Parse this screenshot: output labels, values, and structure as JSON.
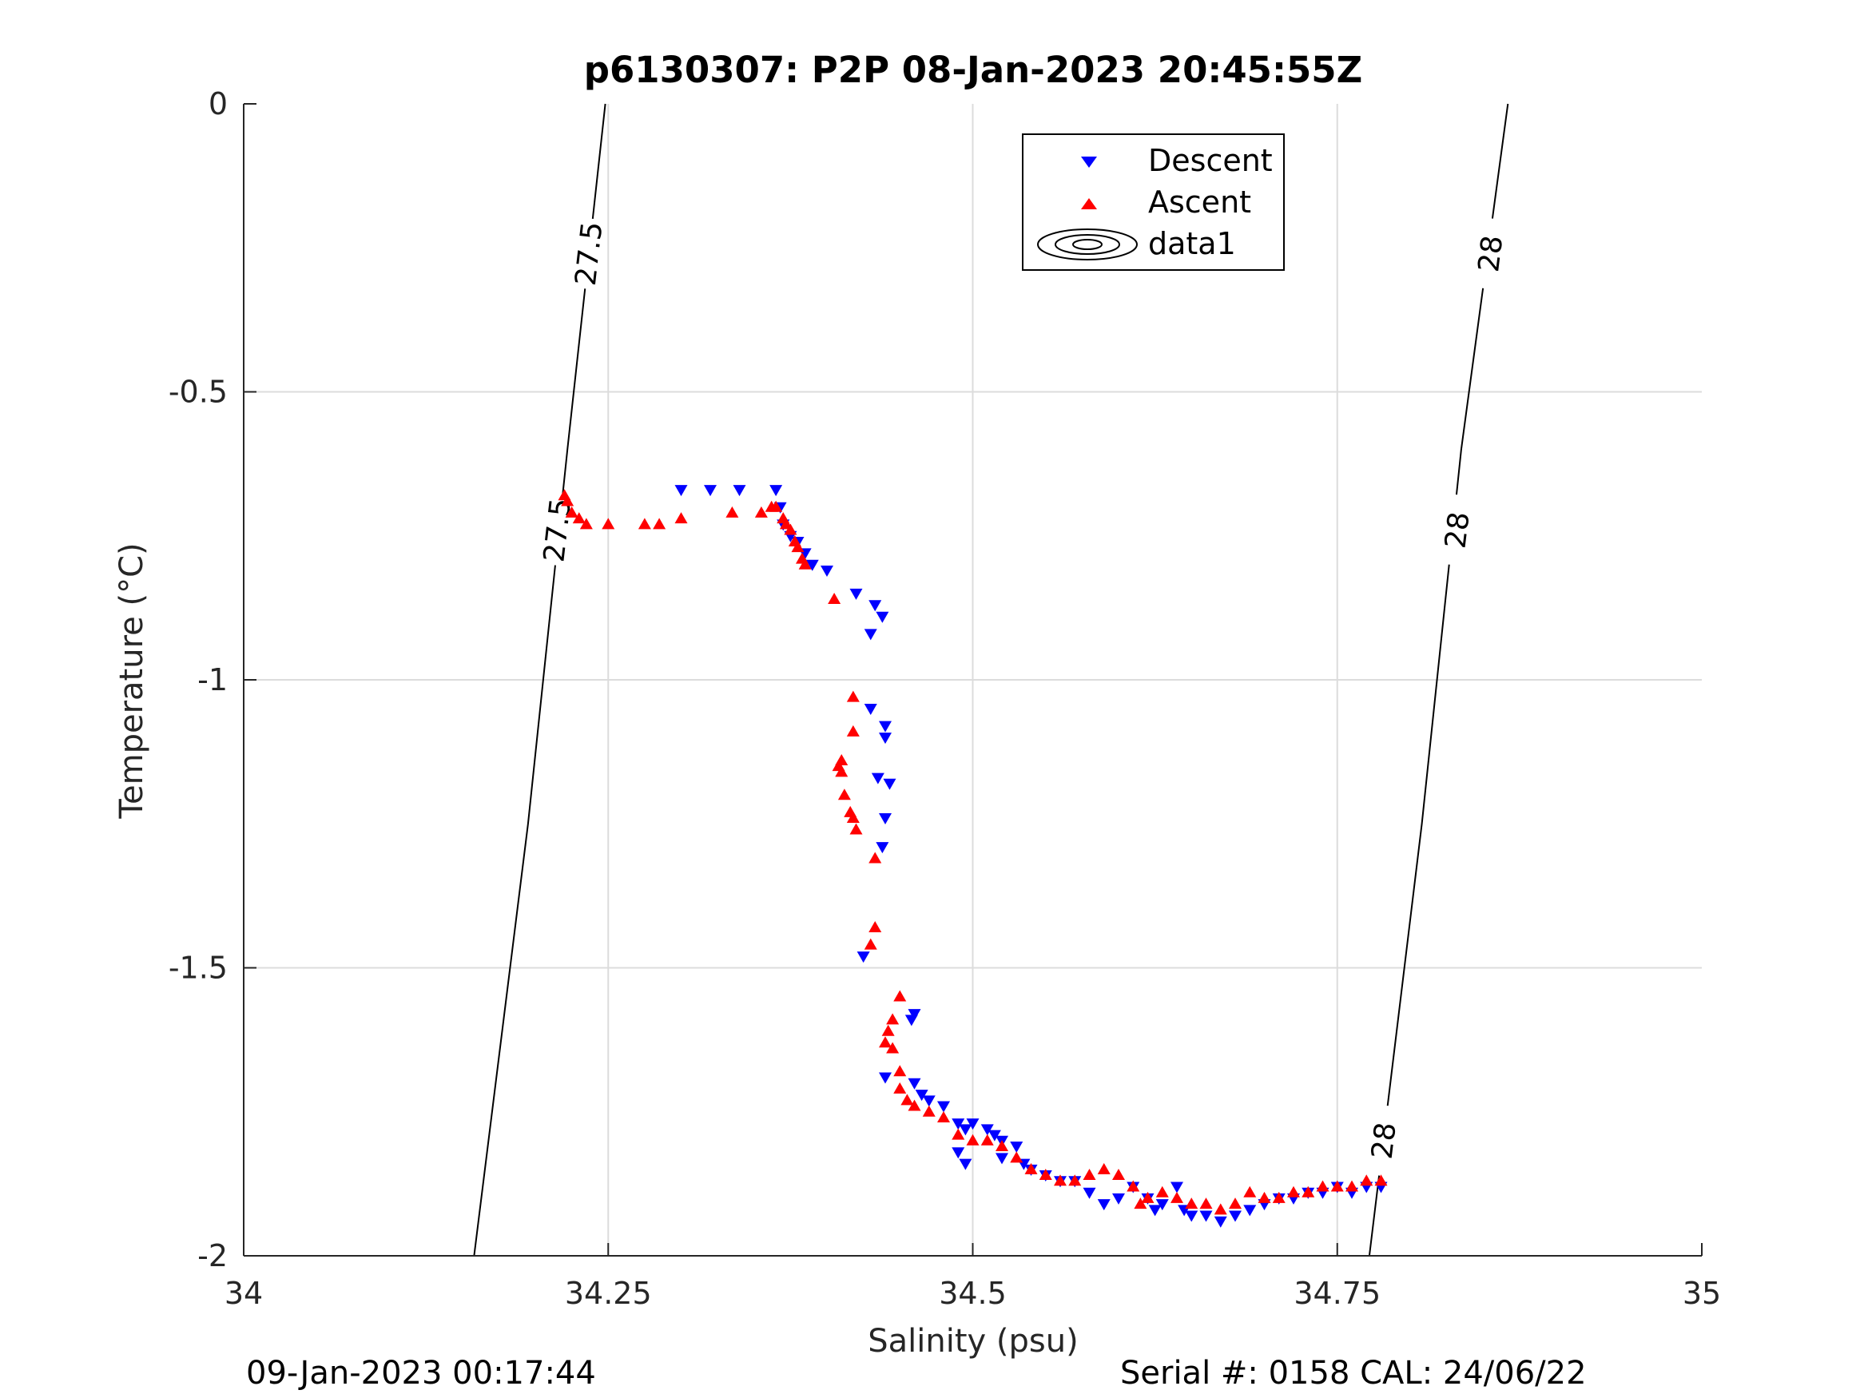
{
  "title": "p6130307: P2P 08-Jan-2023 20:45:55Z",
  "footer": {
    "left": "09-Jan-2023 00:17:44",
    "right": "Serial #: 0158  CAL: 24/06/22"
  },
  "colors": {
    "descent": "#0000ff",
    "ascent": "#ff0000",
    "isopycnal": "#000000",
    "grid": "#dcdcdc"
  },
  "chart_data": {
    "type": "scatter",
    "xlabel": "Salinity (psu)",
    "ylabel": "Temperature (°C)",
    "xlim": [
      34,
      35
    ],
    "ylim": [
      -2,
      0
    ],
    "xticks": [
      34,
      34.25,
      34.5,
      34.75,
      35
    ],
    "xtick_labels": [
      "34",
      "34.25",
      "34.5",
      "34.75",
      "35"
    ],
    "yticks": [
      0,
      -0.5,
      -1,
      -1.5,
      -2
    ],
    "ytick_labels": [
      "0",
      "-0.5",
      "-1",
      "-1.5",
      "-2"
    ],
    "grid": true,
    "legend": {
      "position": "top-center",
      "entries": [
        "Descent",
        "Ascent",
        "data1"
      ]
    },
    "isopycnals": [
      {
        "label": "27.5",
        "points": [
          [
            34.158,
            -2.0
          ],
          [
            34.195,
            -1.25
          ],
          [
            34.222,
            -0.6
          ],
          [
            34.248,
            0.0
          ]
        ]
      },
      {
        "label": "28",
        "points": [
          [
            34.772,
            -2.0
          ],
          [
            34.808,
            -1.25
          ],
          [
            34.835,
            -0.6
          ],
          [
            34.867,
            0.0
          ]
        ]
      }
    ],
    "series": [
      {
        "name": "Descent",
        "marker": "triangle-down",
        "points": [
          [
            34.3,
            -0.67
          ],
          [
            34.32,
            -0.67
          ],
          [
            34.34,
            -0.67
          ],
          [
            34.365,
            -0.67
          ],
          [
            34.368,
            -0.7
          ],
          [
            34.37,
            -0.73
          ],
          [
            34.375,
            -0.75
          ],
          [
            34.38,
            -0.76
          ],
          [
            34.385,
            -0.78
          ],
          [
            34.39,
            -0.8
          ],
          [
            34.4,
            -0.81
          ],
          [
            34.42,
            -0.85
          ],
          [
            34.433,
            -0.87
          ],
          [
            34.438,
            -0.89
          ],
          [
            34.43,
            -0.92
          ],
          [
            34.43,
            -1.05
          ],
          [
            34.44,
            -1.08
          ],
          [
            34.44,
            -1.1
          ],
          [
            34.435,
            -1.17
          ],
          [
            34.443,
            -1.18
          ],
          [
            34.44,
            -1.24
          ],
          [
            34.438,
            -1.29
          ],
          [
            34.425,
            -1.48
          ],
          [
            34.458,
            -1.59
          ],
          [
            34.46,
            -1.58
          ],
          [
            34.44,
            -1.69
          ],
          [
            34.46,
            -1.7
          ],
          [
            34.465,
            -1.72
          ],
          [
            34.47,
            -1.73
          ],
          [
            34.48,
            -1.74
          ],
          [
            34.49,
            -1.77
          ],
          [
            34.495,
            -1.78
          ],
          [
            34.5,
            -1.77
          ],
          [
            34.51,
            -1.78
          ],
          [
            34.515,
            -1.79
          ],
          [
            34.52,
            -1.8
          ],
          [
            34.53,
            -1.81
          ],
          [
            34.49,
            -1.82
          ],
          [
            34.495,
            -1.84
          ],
          [
            34.52,
            -1.83
          ],
          [
            34.535,
            -1.84
          ],
          [
            34.54,
            -1.85
          ],
          [
            34.55,
            -1.86
          ],
          [
            34.56,
            -1.87
          ],
          [
            34.57,
            -1.87
          ],
          [
            34.58,
            -1.89
          ],
          [
            34.59,
            -1.91
          ],
          [
            34.6,
            -1.9
          ],
          [
            34.61,
            -1.88
          ],
          [
            34.62,
            -1.9
          ],
          [
            34.625,
            -1.92
          ],
          [
            34.63,
            -1.91
          ],
          [
            34.64,
            -1.88
          ],
          [
            34.645,
            -1.92
          ],
          [
            34.65,
            -1.93
          ],
          [
            34.66,
            -1.93
          ],
          [
            34.67,
            -1.94
          ],
          [
            34.68,
            -1.93
          ],
          [
            34.69,
            -1.92
          ],
          [
            34.7,
            -1.91
          ],
          [
            34.71,
            -1.9
          ],
          [
            34.72,
            -1.9
          ],
          [
            34.73,
            -1.89
          ],
          [
            34.74,
            -1.89
          ],
          [
            34.75,
            -1.88
          ],
          [
            34.76,
            -1.89
          ],
          [
            34.77,
            -1.88
          ],
          [
            34.78,
            -1.88
          ]
        ]
      },
      {
        "name": "Ascent",
        "marker": "triangle-up",
        "points": [
          [
            34.22,
            -0.68
          ],
          [
            34.222,
            -0.69
          ],
          [
            34.225,
            -0.71
          ],
          [
            34.23,
            -0.72
          ],
          [
            34.235,
            -0.73
          ],
          [
            34.25,
            -0.73
          ],
          [
            34.275,
            -0.73
          ],
          [
            34.285,
            -0.73
          ],
          [
            34.3,
            -0.72
          ],
          [
            34.335,
            -0.71
          ],
          [
            34.355,
            -0.71
          ],
          [
            34.362,
            -0.7
          ],
          [
            34.365,
            -0.7
          ],
          [
            34.37,
            -0.72
          ],
          [
            34.372,
            -0.73
          ],
          [
            34.375,
            -0.74
          ],
          [
            34.378,
            -0.76
          ],
          [
            34.38,
            -0.77
          ],
          [
            34.383,
            -0.79
          ],
          [
            34.385,
            -0.8
          ],
          [
            34.405,
            -0.86
          ],
          [
            34.418,
            -1.03
          ],
          [
            34.418,
            -1.09
          ],
          [
            34.41,
            -1.14
          ],
          [
            34.408,
            -1.15
          ],
          [
            34.41,
            -1.16
          ],
          [
            34.412,
            -1.2
          ],
          [
            34.416,
            -1.23
          ],
          [
            34.418,
            -1.24
          ],
          [
            34.42,
            -1.26
          ],
          [
            34.433,
            -1.31
          ],
          [
            34.433,
            -1.43
          ],
          [
            34.43,
            -1.46
          ],
          [
            34.45,
            -1.55
          ],
          [
            34.445,
            -1.59
          ],
          [
            34.442,
            -1.61
          ],
          [
            34.44,
            -1.63
          ],
          [
            34.445,
            -1.64
          ],
          [
            34.45,
            -1.68
          ],
          [
            34.45,
            -1.71
          ],
          [
            34.455,
            -1.73
          ],
          [
            34.46,
            -1.74
          ],
          [
            34.47,
            -1.75
          ],
          [
            34.48,
            -1.76
          ],
          [
            34.49,
            -1.79
          ],
          [
            34.5,
            -1.8
          ],
          [
            34.51,
            -1.8
          ],
          [
            34.52,
            -1.81
          ],
          [
            34.53,
            -1.83
          ],
          [
            34.54,
            -1.85
          ],
          [
            34.55,
            -1.86
          ],
          [
            34.56,
            -1.87
          ],
          [
            34.57,
            -1.87
          ],
          [
            34.58,
            -1.86
          ],
          [
            34.59,
            -1.85
          ],
          [
            34.6,
            -1.86
          ],
          [
            34.61,
            -1.88
          ],
          [
            34.615,
            -1.91
          ],
          [
            34.62,
            -1.9
          ],
          [
            34.63,
            -1.89
          ],
          [
            34.64,
            -1.9
          ],
          [
            34.65,
            -1.91
          ],
          [
            34.66,
            -1.91
          ],
          [
            34.67,
            -1.92
          ],
          [
            34.68,
            -1.91
          ],
          [
            34.69,
            -1.89
          ],
          [
            34.7,
            -1.9
          ],
          [
            34.71,
            -1.9
          ],
          [
            34.72,
            -1.89
          ],
          [
            34.73,
            -1.89
          ],
          [
            34.74,
            -1.88
          ],
          [
            34.75,
            -1.88
          ],
          [
            34.76,
            -1.88
          ],
          [
            34.77,
            -1.87
          ],
          [
            34.78,
            -1.87
          ]
        ]
      }
    ]
  }
}
